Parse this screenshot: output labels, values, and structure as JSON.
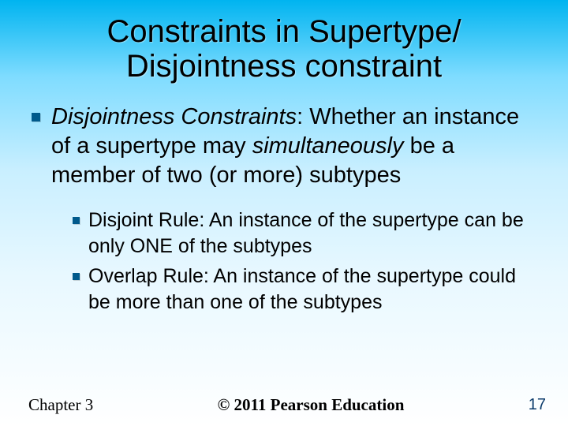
{
  "title": {
    "line1": "Constraints in Supertype/",
    "line2": "Disjointness constraint",
    "fontsize": 40,
    "color": "#000000"
  },
  "main_bullet": {
    "term": "Disjointness Constraints",
    "colon_after": ":  Whether an instance of a supertype may ",
    "italic_word": "simultaneously",
    "rest": " be a member of two (or more) subtypes",
    "fontsize": 29
  },
  "sub_bullets": [
    {
      "text": "Disjoint Rule: An instance of the supertype can be only ONE of the subtypes"
    },
    {
      "text": "Overlap Rule: An instance of the supertype could be more than one of the subtypes"
    }
  ],
  "sub_fontsize": 25,
  "bullet_color": "#005a8c",
  "footer": {
    "left": "Chapter 3",
    "center": "© 2011 Pearson Education",
    "page": "17",
    "fontsize": 21
  },
  "background": {
    "gradient_top": "#00b4f0",
    "gradient_bottom": "#ffffff"
  }
}
